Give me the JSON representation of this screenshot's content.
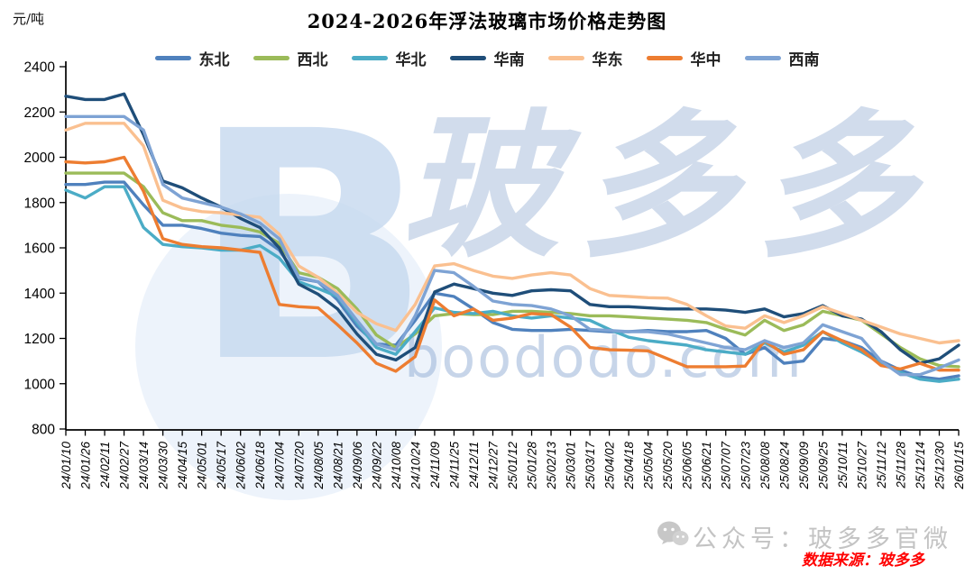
{
  "title": "2024-2026年浮法玻璃市场价格走势图",
  "y_unit": "元/吨",
  "watermark": {
    "letter": "B",
    "cn": "玻多多",
    "site": "boododo.com",
    "footer_gray": "公众号：玻多多官微",
    "source_note": "数据来源：玻多多"
  },
  "chart_data": {
    "type": "line",
    "title": "2024-2026年浮法玻璃市场价格走势图",
    "xlabel": "",
    "ylabel": "元/吨",
    "ylim": [
      800,
      2400
    ],
    "yticks": [
      2400,
      2200,
      2000,
      1800,
      1600,
      1400,
      1200,
      1000,
      800
    ],
    "grid": false,
    "legend_position": "top",
    "categories": [
      "24/01/10",
      "24/01/26",
      "24/02/11",
      "24/02/27",
      "24/03/14",
      "24/03/30",
      "24/04/15",
      "24/05/01",
      "24/05/17",
      "24/06/02",
      "24/06/18",
      "24/07/04",
      "24/07/20",
      "24/08/05",
      "24/08/21",
      "24/09/06",
      "24/09/22",
      "24/10/08",
      "24/10/24",
      "24/11/09",
      "24/11/25",
      "24/12/11",
      "24/12/27",
      "25/01/12",
      "25/01/28",
      "25/02/13",
      "25/03/01",
      "25/03/17",
      "25/04/02",
      "25/04/18",
      "25/05/04",
      "25/05/20",
      "25/06/05",
      "25/06/21",
      "25/07/07",
      "25/07/23",
      "25/08/08",
      "25/08/24",
      "25/09/09",
      "25/09/25",
      "25/10/11",
      "25/10/27",
      "25/11/12",
      "25/11/28",
      "25/12/14",
      "25/12/30",
      "26/01/15"
    ],
    "series": [
      {
        "name": "东北",
        "color": "#4F81BD",
        "values": [
          1880,
          1880,
          1890,
          1890,
          1790,
          1700,
          1700,
          1685,
          1665,
          1655,
          1650,
          1590,
          1465,
          1450,
          1370,
          1255,
          1175,
          1170,
          1280,
          1400,
          1385,
          1330,
          1270,
          1240,
          1235,
          1235,
          1240,
          1235,
          1230,
          1230,
          1235,
          1230,
          1230,
          1235,
          1200,
          1130,
          1160,
          1090,
          1100,
          1200,
          1190,
          1160,
          1100,
          1060,
          1030,
          1020,
          1035
        ]
      },
      {
        "name": "西北",
        "color": "#9BBB59",
        "values": [
          1930,
          1930,
          1930,
          1930,
          1870,
          1755,
          1720,
          1720,
          1700,
          1690,
          1670,
          1620,
          1490,
          1470,
          1420,
          1330,
          1215,
          1160,
          1220,
          1300,
          1310,
          1305,
          1305,
          1320,
          1320,
          1315,
          1310,
          1300,
          1300,
          1295,
          1290,
          1285,
          1280,
          1270,
          1240,
          1215,
          1280,
          1235,
          1260,
          1320,
          1300,
          1280,
          1220,
          1160,
          1110,
          1080,
          1075
        ]
      },
      {
        "name": "华北",
        "color": "#4BACC6",
        "values": [
          1855,
          1820,
          1870,
          1870,
          1690,
          1615,
          1605,
          1600,
          1590,
          1590,
          1610,
          1555,
          1450,
          1420,
          1385,
          1270,
          1160,
          1130,
          1230,
          1335,
          1315,
          1310,
          1320,
          1300,
          1290,
          1300,
          1290,
          1280,
          1240,
          1205,
          1190,
          1180,
          1170,
          1150,
          1140,
          1130,
          1180,
          1140,
          1170,
          1230,
          1180,
          1140,
          1090,
          1050,
          1020,
          1010,
          1020
        ]
      },
      {
        "name": "华南",
        "color": "#1F4E79",
        "values": [
          2270,
          2255,
          2255,
          2280,
          2100,
          1895,
          1865,
          1820,
          1780,
          1730,
          1690,
          1600,
          1440,
          1395,
          1330,
          1220,
          1130,
          1105,
          1160,
          1405,
          1440,
          1420,
          1400,
          1390,
          1410,
          1415,
          1410,
          1350,
          1340,
          1340,
          1335,
          1330,
          1330,
          1330,
          1325,
          1315,
          1330,
          1295,
          1310,
          1345,
          1300,
          1285,
          1230,
          1150,
          1090,
          1110,
          1170
        ]
      },
      {
        "name": "华东",
        "color": "#FAC090",
        "values": [
          2120,
          2150,
          2150,
          2150,
          2050,
          1810,
          1775,
          1760,
          1755,
          1745,
          1735,
          1660,
          1520,
          1470,
          1400,
          1315,
          1265,
          1235,
          1350,
          1520,
          1530,
          1500,
          1475,
          1465,
          1480,
          1490,
          1480,
          1420,
          1390,
          1385,
          1380,
          1378,
          1350,
          1300,
          1255,
          1245,
          1300,
          1270,
          1300,
          1340,
          1310,
          1280,
          1250,
          1220,
          1200,
          1180,
          1190
        ]
      },
      {
        "name": "华中",
        "color": "#ED7D31",
        "values": [
          1980,
          1975,
          1980,
          2000,
          1850,
          1640,
          1615,
          1605,
          1600,
          1590,
          1580,
          1350,
          1340,
          1335,
          1260,
          1180,
          1090,
          1055,
          1120,
          1370,
          1300,
          1330,
          1280,
          1290,
          1310,
          1305,
          1250,
          1160,
          1150,
          1148,
          1145,
          1110,
          1075,
          1075,
          1075,
          1078,
          1190,
          1130,
          1150,
          1230,
          1190,
          1150,
          1080,
          1065,
          1090,
          1060,
          1060
        ]
      },
      {
        "name": "西南",
        "color": "#7EA3D4",
        "values": [
          2180,
          2180,
          2180,
          2180,
          2120,
          1880,
          1820,
          1800,
          1780,
          1750,
          1710,
          1640,
          1470,
          1450,
          1390,
          1280,
          1175,
          1150,
          1300,
          1500,
          1490,
          1430,
          1365,
          1350,
          1345,
          1330,
          1300,
          1240,
          1235,
          1230,
          1230,
          1220,
          1200,
          1180,
          1160,
          1150,
          1190,
          1160,
          1180,
          1260,
          1230,
          1200,
          1100,
          1040,
          1040,
          1070,
          1105
        ]
      }
    ]
  }
}
